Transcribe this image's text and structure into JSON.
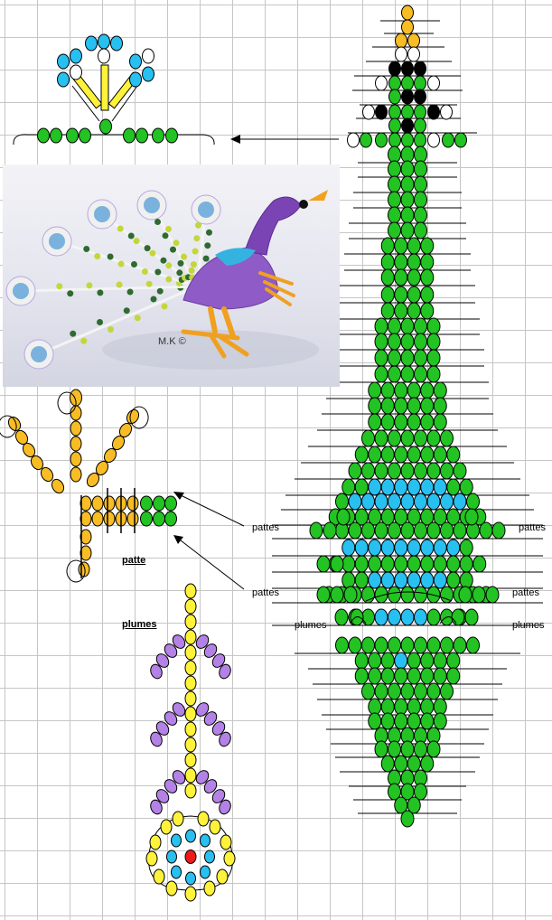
{
  "labels": {
    "patte": "patte",
    "plumes": "plumes",
    "pattes": "pattes",
    "watermark": "M.K ©"
  },
  "colors": {
    "green": "#22c322",
    "yellow": "#fff23a",
    "gold": "#f8bc24",
    "light_blue": "#28c0f0",
    "black": "#000000",
    "white": "#ffffff",
    "purple": "#b482e6",
    "red": "#f01818"
  },
  "icons": {
    "arrow_left": "arrow-left-icon",
    "arrow_diagonal": "arrow-diagonal-icon"
  }
}
